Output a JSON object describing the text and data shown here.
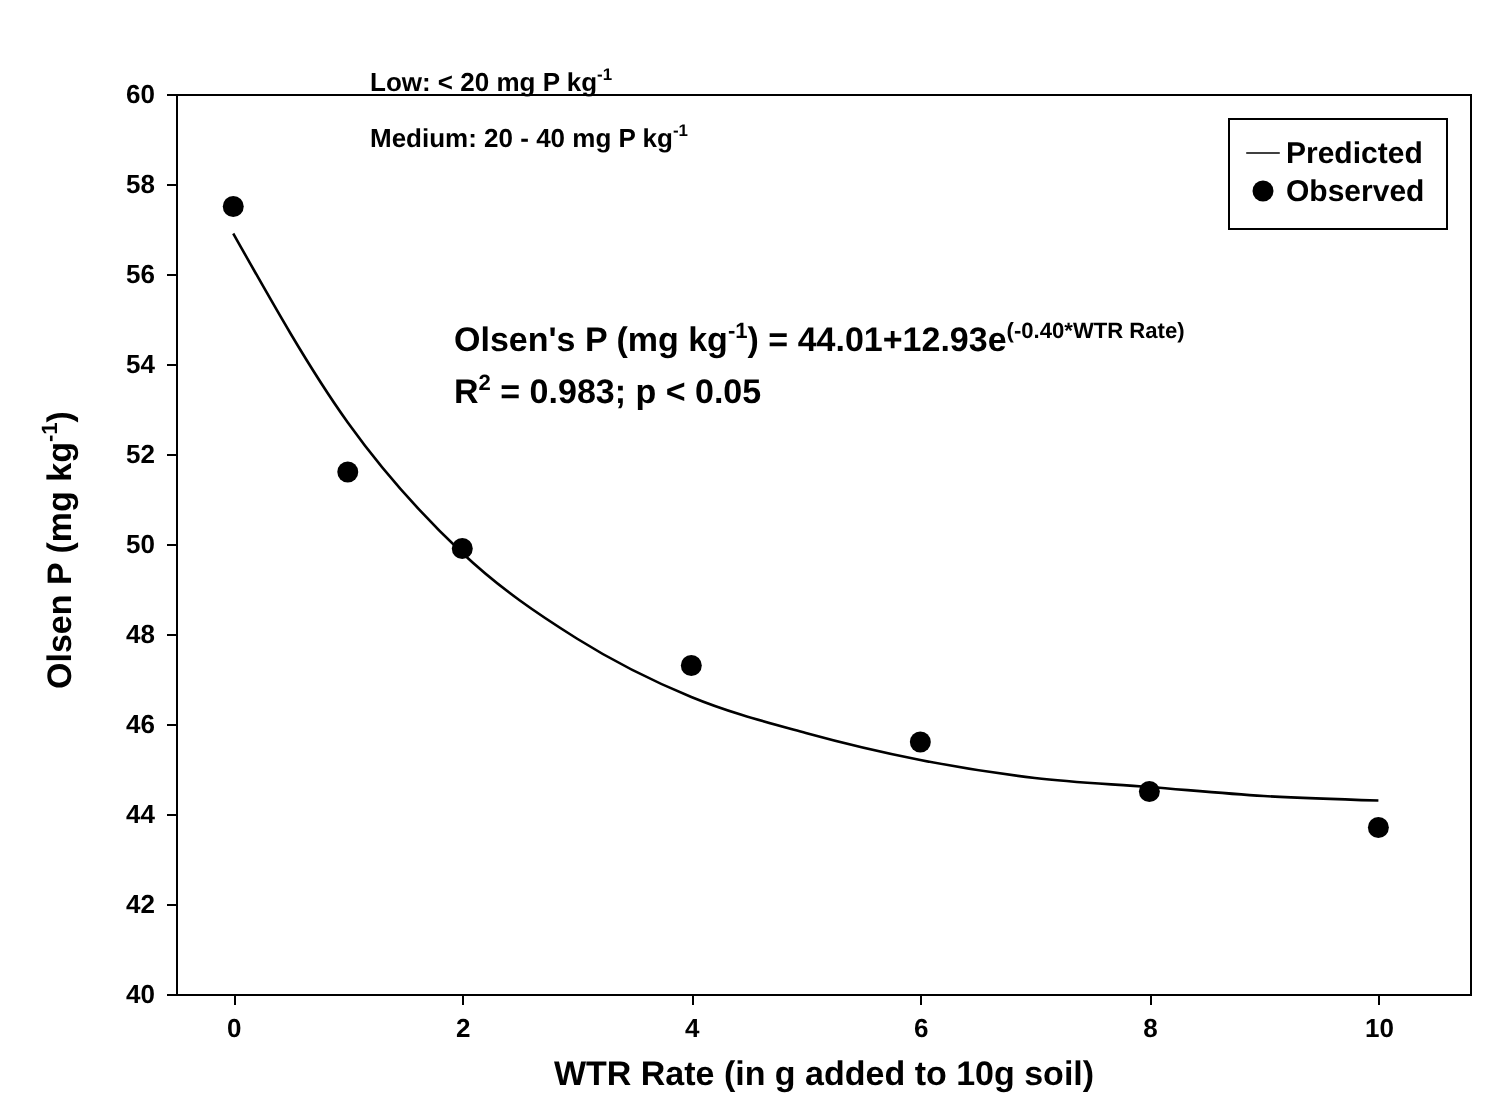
{
  "chart_data": {
    "type": "scatter",
    "xlabel": "WTR Rate (in g added to 10g soil)",
    "ylabel": "Olsen P (mg kg$^{-1}$)",
    "xlim": [
      -0.5,
      10.8
    ],
    "xticks": [
      0,
      2,
      4,
      6,
      8,
      10
    ],
    "ylim": [
      40,
      60
    ],
    "yticks": [
      40,
      42,
      44,
      46,
      48,
      50,
      52,
      54,
      56,
      58,
      60
    ],
    "grid": false,
    "legend": "top right",
    "series": [
      {
        "name": "Predicted",
        "type": "line",
        "marker": "none",
        "color": "#000000",
        "x": [
          0,
          1,
          2,
          3,
          4,
          5,
          6,
          7,
          8,
          9,
          10
        ],
        "values": [
          56.9,
          52.7,
          49.8,
          47.9,
          46.6,
          45.8,
          45.2,
          44.8,
          44.6,
          44.4,
          44.3
        ]
      },
      {
        "name": "Observed",
        "marker": "circle",
        "color": "#000000",
        "x": [
          0,
          1,
          2,
          4,
          6,
          8,
          10
        ],
        "values": [
          57.5,
          51.6,
          49.9,
          47.3,
          45.6,
          44.5,
          43.7
        ]
      }
    ],
    "annotations": [
      "Low: < 20 mg P kg$^{-1}$",
      "Medium: 20 - 40 mg P kg$^{-1}$",
      "Olsen's P (mg kg$^{-1}$) = 44.01+12.93e$^{(-0.40*WTR Rate)}$",
      "R$^{2}$ = 0.983; p < 0.05"
    ]
  }
}
